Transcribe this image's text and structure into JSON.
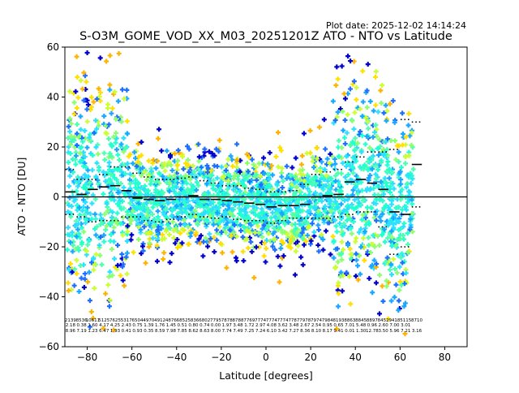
{
  "plot_date": "Plot date: 2025-12-02 14:14:24",
  "colors": {
    "scatter_palette": [
      "#0000cc",
      "#1f6fff",
      "#18a8ff",
      "#2ee0ff",
      "#22ffd0",
      "#4dffb0",
      "#8cff70",
      "#ccff33",
      "#ffe000",
      "#ffb300"
    ],
    "axis": "#000000",
    "zero_line": "#000000",
    "mean_line": "#000000"
  },
  "chart_data": {
    "type": "scatter",
    "title": "S-O3M_GOME_VOD_XX_M03_20251201Z ATO - NTO vs Latitude",
    "xlabel": "Latitude [degrees]",
    "ylabel": "ATO - NTO [DU]",
    "xlim": [
      -90,
      90
    ],
    "ylim": [
      -60,
      60
    ],
    "xticks": [
      -80,
      -60,
      -40,
      -20,
      0,
      20,
      40,
      60,
      80
    ],
    "yticks": [
      -60,
      -40,
      -20,
      0,
      20,
      40,
      60
    ],
    "xtick_labels": [
      "−80",
      "−60",
      "−40",
      "−20",
      "0",
      "20",
      "40",
      "60",
      "80"
    ],
    "ytick_labels": [
      "−60",
      "−40",
      "−20",
      "0",
      "20",
      "40",
      "60"
    ],
    "grid": false,
    "zero_line_y": 0,
    "bins_lat": [
      -87.5,
      -82.5,
      -77.5,
      -72.5,
      -67.5,
      -62.5,
      -57.5,
      -52.5,
      -47.5,
      -42.5,
      -37.5,
      -32.5,
      -27.5,
      -22.5,
      -17.5,
      -12.5,
      -7.5,
      -2.5,
      2.5,
      7.5,
      12.5,
      17.5,
      22.5,
      27.5,
      32.5,
      37.5,
      42.5,
      47.5,
      52.5,
      57.5,
      62.5,
      67.5
    ],
    "bin_mean": [
      2,
      1,
      3,
      4,
      4.5,
      2.5,
      -0.5,
      -1,
      -1.5,
      -1,
      0,
      0.5,
      -1,
      -1,
      -1.5,
      -2,
      -2.5,
      -3,
      -4,
      -3.5,
      -3.5,
      -3,
      0,
      0.5,
      1,
      6,
      7,
      5.5,
      3,
      -6,
      -7,
      13
    ],
    "bin_upper": [
      11,
      7,
      7,
      9,
      12,
      12,
      9.5,
      8,
      7,
      7,
      7.5,
      8,
      6.5,
      5.5,
      4.5,
      4.5,
      3.5,
      3,
      2,
      2,
      2.5,
      5,
      9,
      10,
      11,
      14,
      16,
      18,
      18,
      19,
      31,
      30
    ],
    "bin_lower": [
      -7,
      -8,
      -10,
      -9.5,
      -9.5,
      -8,
      -8,
      -9.5,
      -10,
      -9,
      -8,
      -7,
      -8,
      -8.5,
      -8,
      -9,
      -9.5,
      -9.5,
      -10.5,
      -9.5,
      -8.5,
      -8.5,
      -8.5,
      -8.5,
      -8,
      -7,
      -6,
      -6,
      -12,
      -23,
      -20,
      -4
    ],
    "bin_count": [
      2139,
      8536,
      10611,
      5125,
      7625,
      5317,
      6504,
      4970,
      4912,
      4876,
      6852,
      5836,
      6802,
      7795,
      7878,
      8788,
      7769,
      7774,
      7774,
      7774,
      7787,
      7978,
      7974,
      7984,
      8193,
      8863,
      8845,
      8897,
      8452,
      9418,
      5115,
      8710
    ],
    "bin_stat2": [
      "2.18",
      "0.38",
      "1.60",
      "4.17",
      "4.25",
      "2.43",
      "0.75",
      "1.39",
      "1.76",
      "1.45",
      "0.51",
      "0.80",
      "0.74",
      "0.00",
      "1.97",
      "3.48",
      "1.72",
      "2.97",
      "4.08",
      "3.62",
      "3.48",
      "2.67",
      "2.54",
      "0.95",
      "0.65",
      "7.01",
      "5.48",
      "0.96",
      "2.60",
      "7.00",
      "3.01",
      ""
    ],
    "bin_stat3": [
      "8.96",
      "7.19",
      "1.23",
      "6.47",
      "1.93",
      "0.41",
      "0.93",
      "0.35",
      "8.59",
      "7.98",
      "7.85",
      "8.62",
      "8.63",
      "8.00",
      "7.74",
      "7.49",
      "7.25",
      "7.24",
      "6.10",
      "3.42",
      "7.27",
      "8.36",
      "8.10",
      "8.17",
      "9.41",
      "0.01",
      "1.30",
      "12.78",
      "3.50",
      "5.96",
      "7.21",
      "3.16"
    ],
    "scatter_note": "Dense scatter of per-pixel ATO-NTO differences spanning roughly -55 to +58 DU between -88 and 66 degrees latitude"
  }
}
